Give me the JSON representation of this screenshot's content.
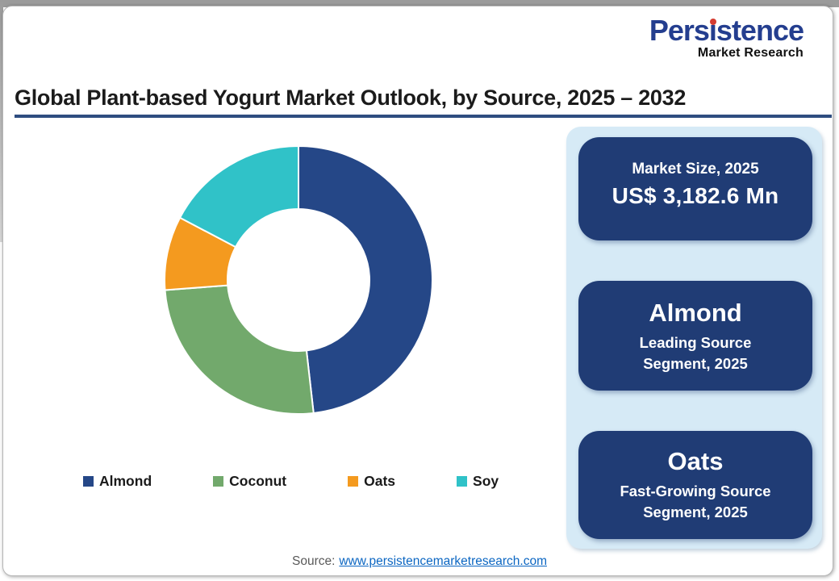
{
  "logo": {
    "wordmark_pre": "Pers",
    "wordmark_i": "ı",
    "wordmark_post": "stence",
    "subtitle": "Market Research",
    "brand_blue": "#243E8F",
    "dot_red": "#D43C31"
  },
  "title": {
    "text": "Global Plant-based Yogurt Market Outlook, by Source, 2025 – 2032",
    "underline_color": "#2E4D80"
  },
  "chart_data": {
    "type": "pie",
    "subtype": "donut",
    "title": "Global Plant-based Yogurt Market Outlook, by Source, 2025 – 2032",
    "categories": [
      "Almond",
      "Coconut",
      "Oats",
      "Soy"
    ],
    "values": [
      48.2,
      25.6,
      8.9,
      17.3
    ],
    "colors": [
      "#254787",
      "#72A96C",
      "#F49A1F",
      "#30C2C8"
    ],
    "start_angle_deg": 0,
    "direction": "clockwise",
    "donut_hole_ratio": 0.53,
    "slice_gap_color": "#FFFFFF",
    "legend_position": "bottom"
  },
  "panel": {
    "background_color": "#D6EAF6",
    "card_color": "#203C75",
    "cards": [
      {
        "label": "Market Size, 2025",
        "value": "US$ 3,182.6 Mn"
      },
      {
        "value": "Almond",
        "sub_line1": "Leading Source",
        "sub_line2": "Segment, 2025"
      },
      {
        "value": "Oats",
        "sub_line1": "Fast-Growing Source",
        "sub_line2": "Segment, 2025"
      }
    ]
  },
  "footer": {
    "label": "Source:",
    "link_text": "www.persistencemarketresearch.com",
    "link_color": "#0B66C2"
  }
}
